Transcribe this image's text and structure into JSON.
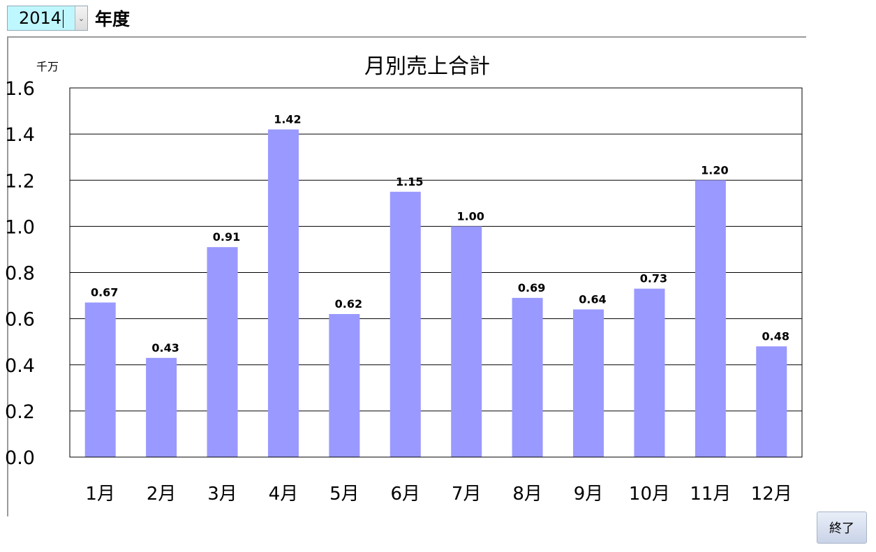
{
  "year_selector": {
    "value": "2014",
    "suffix": "年度"
  },
  "chart_data": {
    "type": "bar",
    "title": "月別売上合計",
    "unit_label": "千万",
    "categories": [
      "1月",
      "2月",
      "3月",
      "4月",
      "5月",
      "6月",
      "7月",
      "8月",
      "9月",
      "10月",
      "11月",
      "12月"
    ],
    "values": [
      0.67,
      0.43,
      0.91,
      1.42,
      0.62,
      1.15,
      1.0,
      0.69,
      0.64,
      0.73,
      1.2,
      0.48
    ],
    "value_labels": [
      "0.67",
      "0.43",
      "0.91",
      "1.42",
      "0.62",
      "1.15",
      "1.00",
      "0.69",
      "0.64",
      "0.73",
      "1.20",
      "0.48"
    ],
    "yticks": [
      "0.0",
      "0.2",
      "0.4",
      "0.6",
      "0.8",
      "1.0",
      "1.2",
      "1.4",
      "1.6"
    ],
    "ylim": [
      0,
      1.6
    ],
    "grid": true,
    "bar_color": "#9999ff"
  },
  "footer": {
    "end_label": "終了"
  }
}
